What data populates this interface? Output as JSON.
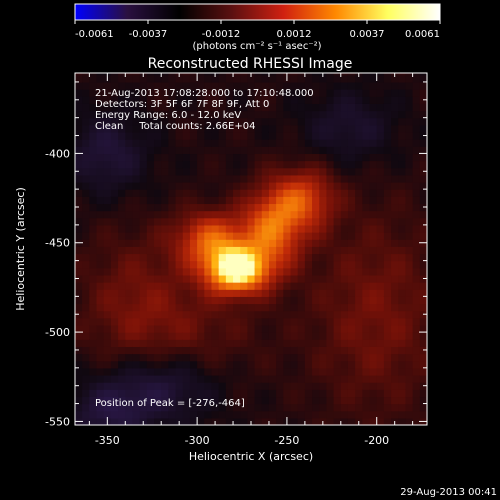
{
  "colorbar": {
    "ticks": [
      "-0.0061",
      "-0.0037",
      "-0.0012",
      "0.0012",
      "0.0037",
      "0.0061"
    ],
    "unit_label": "(photons cm⁻² s⁻¹ asec⁻²)",
    "gradient": [
      "#0000ff",
      "#2a1040",
      "#000000",
      "#5a1010",
      "#d02010",
      "#ff8800",
      "#ffff60",
      "#ffffff"
    ]
  },
  "chart_data": {
    "type": "heatmap",
    "title": "Reconstructed RHESSI Image",
    "xlabel": "Heliocentric X (arcsec)",
    "ylabel": "Heliocentric Y (arcsec)",
    "xlim": [
      -368,
      -172
    ],
    "ylim": [
      -552,
      -355
    ],
    "x_ticks": [
      -350,
      -300,
      -250,
      -200
    ],
    "y_ticks": [
      -400,
      -450,
      -500,
      -550
    ],
    "x_tick_labels": [
      "-350",
      "-300",
      "-250",
      "-200"
    ],
    "y_tick_labels": [
      "-400",
      "-450",
      "-500",
      "-550"
    ],
    "value_range": [
      -0.0061,
      0.0061
    ],
    "peak": {
      "x": -276,
      "y": -464
    },
    "sources": [
      {
        "x": -278,
        "y": -465,
        "sx": 12,
        "sy": 9,
        "amp": 1.0
      },
      {
        "x": -292,
        "y": -448,
        "sx": 14,
        "sy": 11,
        "amp": 0.55
      },
      {
        "x": -258,
        "y": -442,
        "sx": 12,
        "sy": 16,
        "amp": 0.6
      },
      {
        "x": -240,
        "y": -425,
        "sx": 12,
        "sy": 12,
        "amp": 0.45
      },
      {
        "x": -335,
        "y": -480,
        "sx": 22,
        "sy": 28,
        "amp": 0.18
      },
      {
        "x": -200,
        "y": -490,
        "sx": 26,
        "sy": 40,
        "amp": 0.22
      },
      {
        "x": -305,
        "y": -500,
        "sx": 30,
        "sy": 22,
        "amp": 0.15
      },
      {
        "x": -350,
        "y": -400,
        "sx": 16,
        "sy": 16,
        "amp": -0.25
      },
      {
        "x": -320,
        "y": -530,
        "sx": 22,
        "sy": 14,
        "amp": -0.3
      },
      {
        "x": -215,
        "y": -385,
        "sx": 18,
        "sy": 14,
        "amp": -0.2
      },
      {
        "x": -350,
        "y": -545,
        "sx": 16,
        "sy": 12,
        "amp": -0.25
      }
    ],
    "annotations": {
      "time_range": "21-Aug-2013 17:08:28.000 to 17:10:48.000",
      "detectors": "Detectors: 3F 5F 6F 7F 8F 9F, Att 0",
      "energy": "Energy Range: 6.0 - 12.0 keV",
      "clean": "Clean     Total counts: 2.66E+04",
      "peak_position": "Position of Peak = [-276,-464]"
    }
  },
  "footer": {
    "timestamp": "29-Aug-2013 00:41"
  }
}
